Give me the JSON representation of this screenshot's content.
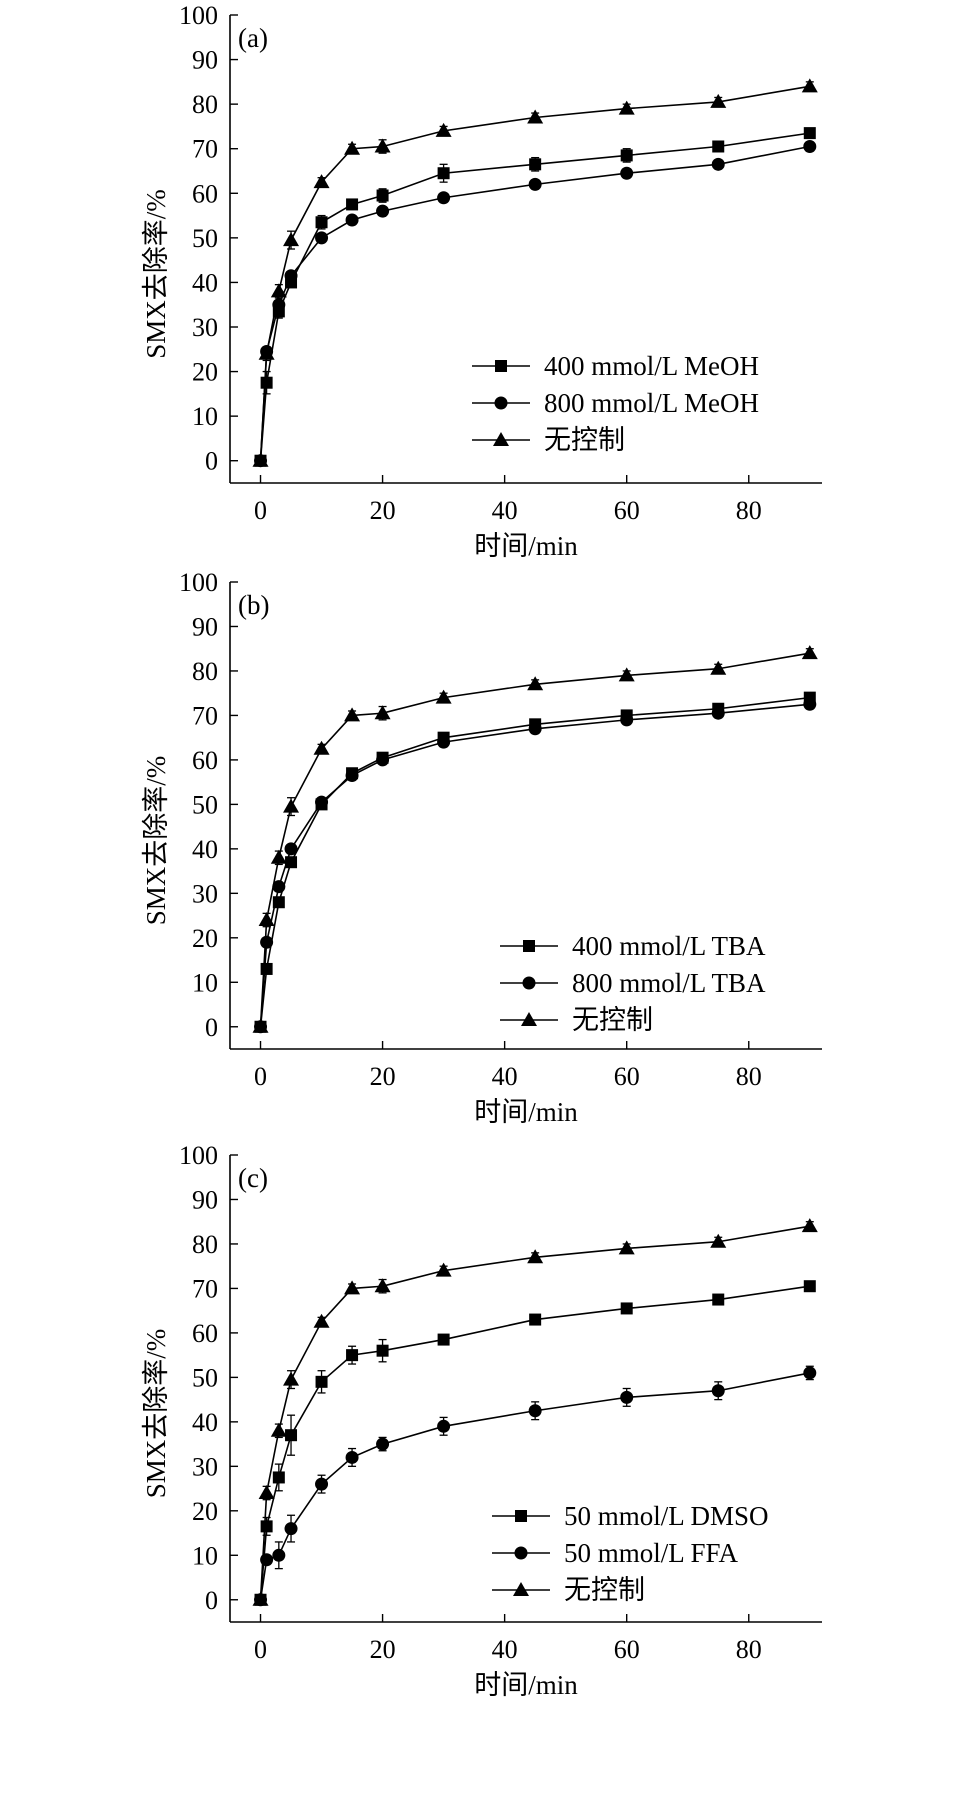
{
  "chart_data": [
    {
      "type": "line",
      "panel_label": "(a)",
      "xlabel": "时间/min",
      "ylabel": "SMX去除率/%",
      "xlim": [
        -5,
        92
      ],
      "ylim": [
        -5,
        100
      ],
      "xticks": [
        0,
        20,
        40,
        60,
        80
      ],
      "yticks": [
        0,
        10,
        20,
        30,
        40,
        50,
        60,
        70,
        80,
        90,
        100
      ],
      "legend_position": "bottom-right",
      "series": [
        {
          "name": "400 mmol/L MeOH",
          "marker": "square",
          "x": [
            0,
            1,
            3,
            5,
            10,
            15,
            20,
            30,
            45,
            60,
            75,
            90
          ],
          "y": [
            0,
            17.5,
            33.5,
            40,
            53.5,
            57.5,
            59.5,
            64.5,
            66.5,
            68.5,
            70.5,
            73.5
          ],
          "err": [
            0,
            2.5,
            1.5,
            1,
            1.5,
            1,
            1.5,
            2,
            1.5,
            1.5,
            1,
            1
          ]
        },
        {
          "name": "800 mmol/L MeOH",
          "marker": "circle",
          "x": [
            0,
            1,
            3,
            5,
            10,
            15,
            20,
            30,
            45,
            60,
            75,
            90
          ],
          "y": [
            0,
            24.5,
            35,
            41.5,
            50,
            54,
            56,
            59,
            62,
            64.5,
            66.5,
            70.5
          ],
          "err": [
            0,
            1,
            1,
            1,
            1,
            1,
            1,
            1,
            1,
            1,
            1,
            1
          ]
        },
        {
          "name": "无控制",
          "marker": "triangle",
          "x": [
            0,
            1,
            3,
            5,
            10,
            15,
            20,
            30,
            45,
            60,
            75,
            90
          ],
          "y": [
            0,
            24,
            38,
            49.5,
            62.5,
            70,
            70.5,
            74,
            77,
            79,
            80.5,
            84
          ],
          "err": [
            0,
            1.5,
            1.5,
            2,
            1,
            1,
            1.5,
            1,
            1,
            1,
            1,
            1
          ]
        }
      ]
    },
    {
      "type": "line",
      "panel_label": "(b)",
      "xlabel": "时间/min",
      "ylabel": "SMX去除率/%",
      "xlim": [
        -5,
        92
      ],
      "ylim": [
        -5,
        100
      ],
      "xticks": [
        0,
        20,
        40,
        60,
        80
      ],
      "yticks": [
        0,
        10,
        20,
        30,
        40,
        50,
        60,
        70,
        80,
        90,
        100
      ],
      "legend_position": "bottom-right",
      "series": [
        {
          "name": "400 mmol/L TBA",
          "marker": "square",
          "x": [
            0,
            1,
            3,
            5,
            10,
            15,
            20,
            30,
            45,
            60,
            75,
            90
          ],
          "y": [
            0,
            13,
            28,
            37,
            50,
            57,
            60.5,
            65,
            68,
            70,
            71.5,
            74
          ],
          "err": [
            0,
            1,
            1,
            1,
            1,
            1,
            1,
            1,
            1,
            1,
            1,
            1
          ]
        },
        {
          "name": "800 mmol/L TBA",
          "marker": "circle",
          "x": [
            0,
            1,
            3,
            5,
            10,
            15,
            20,
            30,
            45,
            60,
            75,
            90
          ],
          "y": [
            0,
            19,
            31.5,
            40,
            50.5,
            56.5,
            60,
            64,
            67,
            69,
            70.5,
            72.5
          ],
          "err": [
            0,
            1,
            1,
            1,
            1,
            1,
            1,
            1,
            1,
            1,
            1,
            1
          ]
        },
        {
          "name": "无控制",
          "marker": "triangle",
          "x": [
            0,
            1,
            3,
            5,
            10,
            15,
            20,
            30,
            45,
            60,
            75,
            90
          ],
          "y": [
            0,
            24,
            38,
            49.5,
            62.5,
            70,
            70.5,
            74,
            77,
            79,
            80.5,
            84
          ],
          "err": [
            0,
            1.5,
            1.5,
            2,
            1,
            1,
            1.5,
            1,
            1,
            1,
            1,
            1
          ]
        }
      ]
    },
    {
      "type": "line",
      "panel_label": "(c)",
      "xlabel": "时间/min",
      "ylabel": "SMX去除率/%",
      "xlim": [
        -5,
        92
      ],
      "ylim": [
        -5,
        100
      ],
      "xticks": [
        0,
        20,
        40,
        60,
        80
      ],
      "yticks": [
        0,
        10,
        20,
        30,
        40,
        50,
        60,
        70,
        80,
        90,
        100
      ],
      "legend_position": "bottom-right",
      "series": [
        {
          "name": "50 mmol/L DMSO",
          "marker": "square",
          "x": [
            0,
            1,
            3,
            5,
            10,
            15,
            20,
            30,
            45,
            60,
            75,
            90
          ],
          "y": [
            0,
            16.5,
            27.5,
            37,
            49,
            55,
            56,
            58.5,
            63,
            65.5,
            67.5,
            70.5
          ],
          "err": [
            0,
            2,
            3,
            4.5,
            2.5,
            2,
            2.5,
            1,
            1,
            1,
            1,
            1
          ]
        },
        {
          "name": "50 mmol/L FFA",
          "marker": "circle",
          "x": [
            0,
            1,
            3,
            5,
            10,
            15,
            20,
            30,
            45,
            60,
            75,
            90
          ],
          "y": [
            0,
            9,
            10,
            16,
            26,
            32,
            35,
            39,
            42.5,
            45.5,
            47,
            51
          ],
          "err": [
            0,
            1,
            3,
            3,
            2,
            2,
            1.5,
            2,
            2,
            2,
            2,
            1.5
          ]
        },
        {
          "name": "无控制",
          "marker": "triangle",
          "x": [
            0,
            1,
            3,
            5,
            10,
            15,
            20,
            30,
            45,
            60,
            75,
            90
          ],
          "y": [
            0,
            24,
            38,
            49.5,
            62.5,
            70,
            70.5,
            74,
            77,
            79,
            80.5,
            84
          ],
          "err": [
            0,
            1.5,
            1.5,
            2,
            1,
            1,
            1.5,
            1,
            1,
            1,
            1,
            1
          ]
        }
      ]
    }
  ]
}
